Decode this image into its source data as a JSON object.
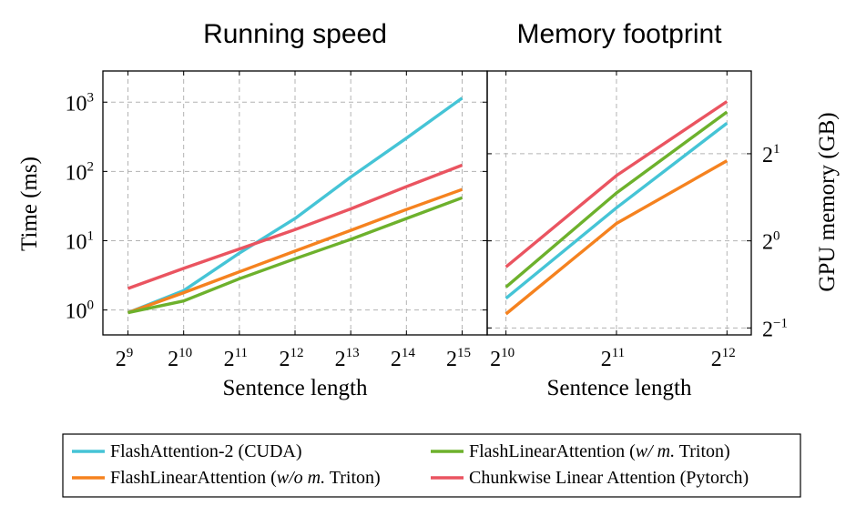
{
  "chart_data": [
    {
      "type": "line",
      "title": "Running speed",
      "xlabel": "Sentence length",
      "ylabel": "Time (ms)",
      "x_scale": "log2",
      "y_scale": "log10",
      "x": [
        9,
        10,
        11,
        12,
        13,
        14,
        15
      ],
      "x_tick_labels": [
        {
          "base": "2",
          "exp": "9"
        },
        {
          "base": "2",
          "exp": "10"
        },
        {
          "base": "2",
          "exp": "11"
        },
        {
          "base": "2",
          "exp": "12"
        },
        {
          "base": "2",
          "exp": "13"
        },
        {
          "base": "2",
          "exp": "14"
        },
        {
          "base": "2",
          "exp": "15"
        }
      ],
      "y_ticks": [
        0,
        1,
        2,
        3
      ],
      "y_tick_labels": [
        {
          "base": "10",
          "exp": "0"
        },
        {
          "base": "10",
          "exp": "1"
        },
        {
          "base": "10",
          "exp": "2"
        },
        {
          "base": "10",
          "exp": "3"
        }
      ],
      "xlim": [
        8.55,
        15.45
      ],
      "ylim": [
        -0.36,
        3.45
      ],
      "grid": true,
      "series": [
        {
          "name": "FlashAttention-2 (CUDA)",
          "color": "#45c4d6",
          "log10_values": [
            -0.04,
            0.28,
            0.82,
            1.32,
            1.92,
            2.48,
            3.06
          ]
        },
        {
          "name": "FlashLinearAttention (w/o m. Triton)",
          "color": "#f5821f",
          "log10_values": [
            -0.04,
            0.25,
            0.55,
            0.85,
            1.15,
            1.45,
            1.74
          ]
        },
        {
          "name": "FlashLinearAttention (w/ m. Triton)",
          "color": "#6db12c",
          "log10_values": [
            -0.04,
            0.13,
            0.45,
            0.74,
            1.02,
            1.32,
            1.62
          ]
        },
        {
          "name": "Chunkwise Linear Attention (Pytorch)",
          "color": "#ea5460",
          "log10_values": [
            0.31,
            0.6,
            0.88,
            1.16,
            1.46,
            1.78,
            2.09
          ]
        }
      ]
    },
    {
      "type": "line",
      "title": "Memory footprint",
      "xlabel": "Sentence length",
      "ylabel": "GPU memory (GB)",
      "x_scale": "log2",
      "y_scale": "log2",
      "x": [
        10,
        11,
        12
      ],
      "x_tick_labels": [
        {
          "base": "2",
          "exp": "10"
        },
        {
          "base": "2",
          "exp": "11"
        },
        {
          "base": "2",
          "exp": "12"
        }
      ],
      "y_ticks": [
        -1,
        0,
        1
      ],
      "y_tick_labels": [
        {
          "base": "2",
          "exp": "−1"
        },
        {
          "base": "2",
          "exp": "0"
        },
        {
          "base": "2",
          "exp": "1"
        }
      ],
      "xlim": [
        9.83,
        12.22
      ],
      "ylim": [
        -1.08,
        1.95
      ],
      "grid": true,
      "series": [
        {
          "name": "FlashAttention-2 (CUDA)",
          "color": "#45c4d6",
          "log2_values": [
            -0.66,
            0.38,
            1.35
          ]
        },
        {
          "name": "FlashLinearAttention (w/o m. Triton)",
          "color": "#f5821f",
          "log2_values": [
            -0.84,
            0.2,
            0.92
          ]
        },
        {
          "name": "FlashLinearAttention (w/ m. Triton)",
          "color": "#6db12c",
          "log2_values": [
            -0.53,
            0.55,
            1.48
          ]
        },
        {
          "name": "Chunkwise Linear Attention (Pytorch)",
          "color": "#ea5460",
          "log2_values": [
            -0.3,
            0.75,
            1.6
          ]
        }
      ]
    }
  ],
  "legend": {
    "placement": "bottom-center",
    "entries": [
      {
        "prefix": "FlashAttention-2 (CUDA)",
        "italic": "",
        "suffix": "",
        "color": "#45c4d6"
      },
      {
        "prefix": "FlashLinearAttention (",
        "italic": "w/ m.",
        "suffix": " Triton)",
        "color": "#6db12c"
      },
      {
        "prefix": "FlashLinearAttention (",
        "italic": "w/o m.",
        "suffix": " Triton)",
        "color": "#f5821f"
      },
      {
        "prefix": "Chunkwise Linear Attention (Pytorch)",
        "italic": "",
        "suffix": "",
        "color": "#ea5460"
      }
    ]
  }
}
